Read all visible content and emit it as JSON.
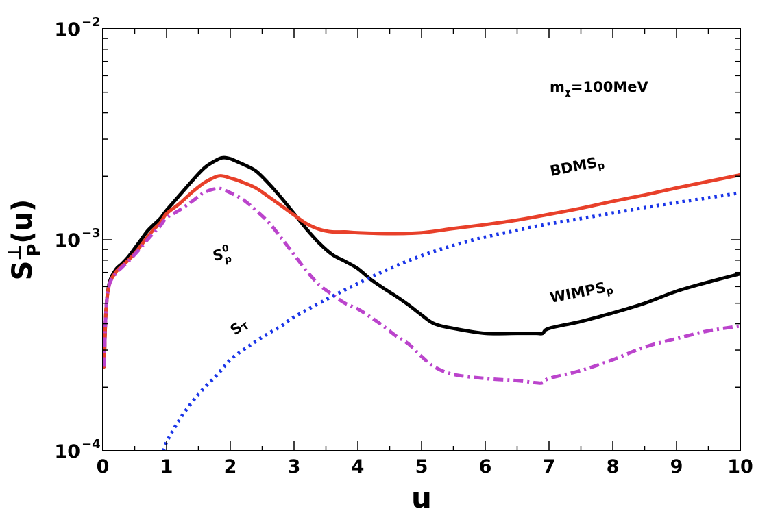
{
  "chart_data": {
    "type": "line",
    "title": "",
    "xlabel": "u",
    "ylabel": {
      "base": "S",
      "sup": "⊥",
      "sub": "P",
      "suffix": "(u)"
    },
    "xlim": [
      0,
      10
    ],
    "ylim": [
      0.0001,
      0.01
    ],
    "yscale": "log",
    "grid": false,
    "x_ticks": [
      "0",
      "1",
      "2",
      "3",
      "4",
      "5",
      "6",
      "7",
      "8",
      "9",
      "10"
    ],
    "y_ticks": [
      {
        "value": 0.0001,
        "base": "10",
        "exp": "−4"
      },
      {
        "value": 0.001,
        "base": "10",
        "exp": "−3"
      },
      {
        "value": 0.01,
        "base": "10",
        "exp": "−2"
      }
    ],
    "annotations": {
      "mass": {
        "base": "m",
        "sub": "χ",
        "text": "=100MeV"
      },
      "bdms": {
        "base": "BDMS",
        "sub": "p"
      },
      "wimps": {
        "base": "WIMPS",
        "sub": "p"
      },
      "s0": {
        "base": "S",
        "sub": "p",
        "sup": "0"
      },
      "st": {
        "base": "S",
        "sub": "T"
      }
    },
    "series": [
      {
        "name": "WIMPS_p",
        "color": "#000000",
        "style": "solid",
        "x": [
          0.02,
          0.05,
          0.1,
          0.2,
          0.3,
          0.4,
          0.5,
          0.6,
          0.7,
          0.8,
          0.9,
          1.0,
          1.2,
          1.4,
          1.6,
          1.8,
          1.9,
          2.0,
          2.1,
          2.2,
          2.4,
          2.6,
          2.8,
          3.0,
          3.2,
          3.4,
          3.6,
          3.8,
          4.0,
          4.2,
          4.4,
          4.6,
          4.8,
          5.0,
          5.2,
          5.5,
          6.0,
          6.5,
          6.8,
          6.9,
          7.0,
          7.5,
          8.0,
          8.5,
          9.0,
          9.5,
          10.0
        ],
        "y": [
          0.00025,
          0.00046,
          0.00062,
          0.00072,
          0.00077,
          0.00083,
          0.00091,
          0.001,
          0.0011,
          0.00118,
          0.00126,
          0.00138,
          0.00162,
          0.0019,
          0.0022,
          0.0024,
          0.00245,
          0.00242,
          0.00235,
          0.00228,
          0.00212,
          0.00185,
          0.00158,
          0.00133,
          0.00112,
          0.00096,
          0.00085,
          0.00079,
          0.00073,
          0.00065,
          0.00059,
          0.00054,
          0.00049,
          0.00044,
          0.0004,
          0.00038,
          0.00036,
          0.00036,
          0.00036,
          0.00036,
          0.00038,
          0.00041,
          0.00045,
          0.0005,
          0.00057,
          0.00063,
          0.00069
        ]
      },
      {
        "name": "BDMS_p",
        "color": "#e8402a",
        "style": "solid",
        "x": [
          0.02,
          0.05,
          0.1,
          0.2,
          0.3,
          0.4,
          0.5,
          0.6,
          0.7,
          0.8,
          0.9,
          1.0,
          1.2,
          1.4,
          1.6,
          1.8,
          1.9,
          2.0,
          2.1,
          2.2,
          2.4,
          2.6,
          2.8,
          3.0,
          3.2,
          3.4,
          3.6,
          3.8,
          4.0,
          4.5,
          5.0,
          5.5,
          6.0,
          6.5,
          7.0,
          7.5,
          8.0,
          8.5,
          9.0,
          9.5,
          10.0
        ],
        "y": [
          0.00025,
          0.00046,
          0.00061,
          0.0007,
          0.00075,
          0.0008,
          0.00086,
          0.00094,
          0.00103,
          0.00112,
          0.0012,
          0.00133,
          0.00148,
          0.00168,
          0.00187,
          0.002,
          0.002,
          0.00196,
          0.00192,
          0.00187,
          0.00176,
          0.0016,
          0.00145,
          0.00131,
          0.00119,
          0.00112,
          0.00109,
          0.00109,
          0.00108,
          0.00107,
          0.00108,
          0.00113,
          0.00118,
          0.00124,
          0.00132,
          0.00141,
          0.00152,
          0.00163,
          0.00176,
          0.00189,
          0.00203
        ]
      },
      {
        "name": "S_p^0",
        "color": "#bb44cc",
        "style": "dashdot",
        "x": [
          0.02,
          0.05,
          0.1,
          0.2,
          0.3,
          0.4,
          0.5,
          0.6,
          0.7,
          0.8,
          0.9,
          1.0,
          1.2,
          1.4,
          1.6,
          1.8,
          1.9,
          2.0,
          2.2,
          2.4,
          2.6,
          2.8,
          3.0,
          3.2,
          3.4,
          3.6,
          3.8,
          4.0,
          4.2,
          4.4,
          4.6,
          4.8,
          5.0,
          5.2,
          5.5,
          6.0,
          6.5,
          6.8,
          6.9,
          7.0,
          7.5,
          8.0,
          8.5,
          9.0,
          9.5,
          10.0
        ],
        "y": [
          0.00025,
          0.00046,
          0.00061,
          0.00069,
          0.00074,
          0.00079,
          0.00085,
          0.00092,
          0.001,
          0.00108,
          0.00116,
          0.00127,
          0.00138,
          0.00152,
          0.00168,
          0.00175,
          0.00172,
          0.00167,
          0.00155,
          0.00138,
          0.00121,
          0.00102,
          0.00085,
          0.00071,
          0.00061,
          0.00055,
          0.0005,
          0.00047,
          0.00043,
          0.00039,
          0.00035,
          0.00032,
          0.00028,
          0.00025,
          0.00023,
          0.00022,
          0.000215,
          0.00021,
          0.00021,
          0.00022,
          0.00024,
          0.00027,
          0.00031,
          0.00034,
          0.00037,
          0.00039
        ]
      },
      {
        "name": "S_T",
        "color": "#1a35e8",
        "style": "dotted",
        "x": [
          0.95,
          1.0,
          1.2,
          1.4,
          1.6,
          1.8,
          2.0,
          2.2,
          2.4,
          2.6,
          2.8,
          3.0,
          3.5,
          4.0,
          4.5,
          5.0,
          5.5,
          6.0,
          6.5,
          7.0,
          7.5,
          8.0,
          8.5,
          9.0,
          9.5,
          10.0
        ],
        "y": [
          0.0001,
          0.00011,
          0.00014,
          0.00017,
          0.0002,
          0.00023,
          0.00027,
          0.0003,
          0.00033,
          0.00036,
          0.00039,
          0.00043,
          0.00052,
          0.00062,
          0.00073,
          0.00084,
          0.00094,
          0.00103,
          0.00111,
          0.00119,
          0.00126,
          0.00134,
          0.00142,
          0.0015,
          0.00158,
          0.00167
        ]
      }
    ]
  }
}
